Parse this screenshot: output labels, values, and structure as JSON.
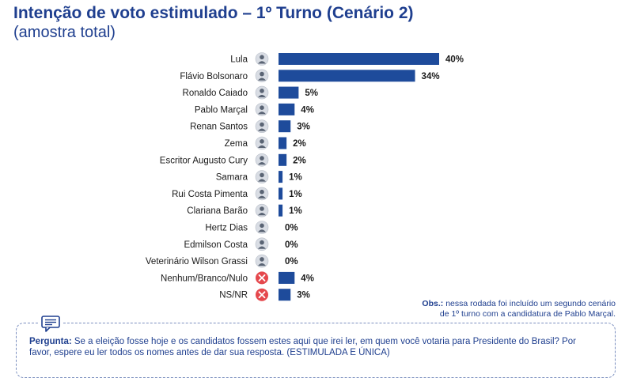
{
  "colors": {
    "bar": "#1e4b9b",
    "title": "#1f3f8f",
    "x_icon": "#e5484d"
  },
  "header": {
    "title": "Intenção de voto estimulado – 1º Turno (Cenário 2)",
    "subtitle": "(amostra total)"
  },
  "chart_data": {
    "type": "bar",
    "orientation": "horizontal",
    "categories": [
      "Lula",
      "Flávio Bolsonaro",
      "Ronaldo Caiado",
      "Pablo Marçal",
      "Renan Santos",
      "Zema",
      "Escritor Augusto Cury",
      "Samara",
      "Rui Costa Pimenta",
      "Clariana Barão",
      "Hertz Dias",
      "Edmilson Costa",
      "Veterinário Wilson Grassi",
      "Nenhum/Branco/Nulo",
      "NS/NR"
    ],
    "values": [
      40,
      34,
      5,
      4,
      3,
      2,
      2,
      1,
      1,
      1,
      0,
      0,
      0,
      4,
      3
    ],
    "value_labels": [
      "40%",
      "34%",
      "5%",
      "4%",
      "3%",
      "2%",
      "2%",
      "1%",
      "1%",
      "1%",
      "0%",
      "0%",
      "0%",
      "4%",
      "3%"
    ],
    "icons": [
      "avatar-icon",
      "avatar-icon",
      "avatar-icon",
      "avatar-icon",
      "avatar-icon",
      "avatar-icon",
      "avatar-icon",
      "avatar-icon",
      "avatar-icon",
      "avatar-icon",
      "avatar-icon",
      "avatar-icon",
      "avatar-icon",
      "x-circle-icon",
      "x-circle-icon"
    ],
    "xlim": [
      0,
      40
    ],
    "grid": false
  },
  "obs": {
    "label": "Obs.:",
    "line1": "nessa rodada foi incluído um segundo cenário",
    "line2": "de 1º turno com a candidatura de Pablo Marçal."
  },
  "question": {
    "label": "Pergunta:",
    "text": "Se a eleição fosse hoje e os candidatos fossem estes aqui que irei ler, em quem você votaria para Presidente do Brasil? Por favor, espere eu ler todos os nomes antes de dar sua resposta. (ESTIMULADA E ÚNICA)",
    "icon": "chat-icon"
  }
}
